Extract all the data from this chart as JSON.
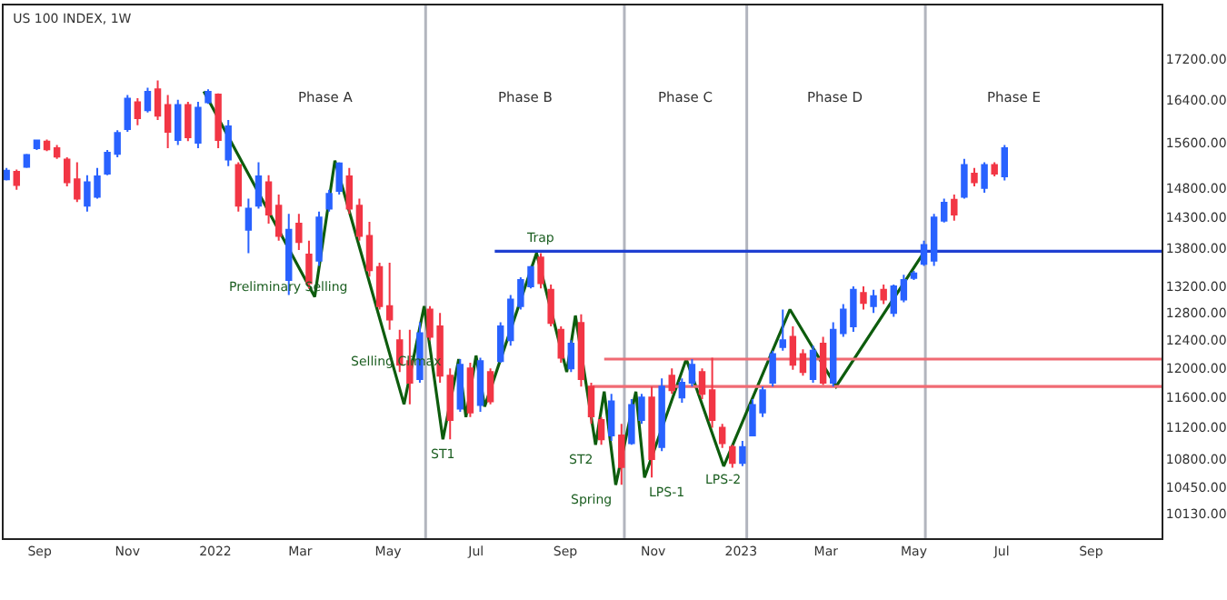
{
  "chart_data": {
    "type": "candlestick",
    "title": "US 100 INDEX, 1W",
    "x": [
      "2021-08-09",
      "2021-08-16",
      "2021-08-23",
      "2021-08-30",
      "2021-09-06",
      "2021-09-13",
      "2021-09-20",
      "2021-09-27",
      "2021-10-04",
      "2021-10-11",
      "2021-10-18",
      "2021-10-25",
      "2021-11-01",
      "2021-11-08",
      "2021-11-15",
      "2021-11-22",
      "2021-11-29",
      "2021-12-06",
      "2021-12-13",
      "2021-12-20",
      "2021-12-27",
      "2022-01-03",
      "2022-01-10",
      "2022-01-17",
      "2022-01-24",
      "2022-01-31",
      "2022-02-07",
      "2022-02-14",
      "2022-02-21",
      "2022-02-28",
      "2022-03-07",
      "2022-03-14",
      "2022-03-21",
      "2022-03-28",
      "2022-04-04",
      "2022-04-11",
      "2022-04-18",
      "2022-04-25",
      "2022-05-02",
      "2022-05-09",
      "2022-05-16",
      "2022-05-23",
      "2022-05-30",
      "2022-06-06",
      "2022-06-13",
      "2022-06-20",
      "2022-06-27",
      "2022-07-04",
      "2022-07-11",
      "2022-07-18",
      "2022-07-25",
      "2022-08-01",
      "2022-08-08",
      "2022-08-15",
      "2022-08-22",
      "2022-08-29",
      "2022-09-05",
      "2022-09-12",
      "2022-09-19",
      "2022-09-26",
      "2022-10-03",
      "2022-10-10",
      "2022-10-17",
      "2022-10-24",
      "2022-10-31",
      "2022-11-07",
      "2022-11-14",
      "2022-11-21",
      "2022-11-28",
      "2022-12-05",
      "2022-12-12",
      "2022-12-19",
      "2022-12-26",
      "2023-01-02",
      "2023-01-09",
      "2023-01-16",
      "2023-01-23",
      "2023-01-30",
      "2023-02-06",
      "2023-02-13",
      "2023-02-20",
      "2023-02-27",
      "2023-03-06",
      "2023-03-13",
      "2023-03-20",
      "2023-03-27",
      "2023-04-03",
      "2023-04-10",
      "2023-04-17",
      "2023-04-24",
      "2023-05-01",
      "2023-05-08",
      "2023-05-15",
      "2023-05-22",
      "2023-05-29",
      "2023-06-05",
      "2023-06-12",
      "2023-06-19",
      "2023-06-26",
      "2023-07-03"
    ],
    "ohlc": [
      [
        14950,
        15150,
        14930,
        15100
      ],
      [
        15080,
        15120,
        14770,
        14850
      ],
      [
        15170,
        15400,
        15150,
        15380
      ],
      [
        15500,
        15660,
        15470,
        15640
      ],
      [
        15620,
        15660,
        15450,
        15480
      ],
      [
        15500,
        15560,
        15310,
        15350
      ],
      [
        15300,
        15340,
        14830,
        14900
      ],
      [
        14950,
        15250,
        14560,
        14620
      ],
      [
        14500,
        15020,
        14400,
        14900
      ],
      [
        14650,
        15150,
        14620,
        15000
      ],
      [
        15050,
        15470,
        15020,
        15420
      ],
      [
        15400,
        15830,
        15340,
        15780
      ],
      [
        15850,
        16490,
        15800,
        16420
      ],
      [
        16350,
        16430,
        15920,
        16050
      ],
      [
        16200,
        16630,
        16160,
        16550
      ],
      [
        16600,
        16770,
        16020,
        16100
      ],
      [
        16300,
        16490,
        15500,
        15800
      ],
      [
        15650,
        16400,
        15560,
        16300
      ],
      [
        16300,
        16360,
        15630,
        15700
      ],
      [
        15600,
        16360,
        15500,
        16250
      ],
      [
        16350,
        16600,
        16320,
        16550
      ],
      [
        16500,
        16520,
        15500,
        15650
      ],
      [
        15300,
        16020,
        15180,
        15900
      ],
      [
        15200,
        15250,
        14400,
        14500
      ],
      [
        14100,
        14620,
        13720,
        14450
      ],
      [
        14500,
        15250,
        14450,
        15000
      ],
      [
        14900,
        15020,
        14200,
        14350
      ],
      [
        14500,
        14690,
        13920,
        14000
      ],
      [
        13300,
        14360,
        13070,
        14100
      ],
      [
        14200,
        14360,
        13770,
        13900
      ],
      [
        13700,
        13920,
        13170,
        13250
      ],
      [
        13600,
        14400,
        13520,
        14300
      ],
      [
        14450,
        14770,
        14400,
        14700
      ],
      [
        14750,
        15250,
        14690,
        15230
      ],
      [
        15000,
        15150,
        14360,
        14450
      ],
      [
        14500,
        14620,
        13920,
        14000
      ],
      [
        14000,
        14230,
        13350,
        13450
      ],
      [
        13500,
        13570,
        12850,
        12900
      ],
      [
        12900,
        13570,
        12550,
        12700
      ],
      [
        12400,
        12550,
        11950,
        12050
      ],
      [
        12100,
        12550,
        11510,
        11800
      ],
      [
        11850,
        12660,
        11800,
        12500
      ],
      [
        12850,
        12900,
        12400,
        12450
      ],
      [
        12600,
        12800,
        11800,
        11900
      ],
      [
        11900,
        12000,
        11050,
        11300
      ],
      [
        11450,
        12130,
        11410,
        12050
      ],
      [
        12000,
        12080,
        11340,
        11400
      ],
      [
        11500,
        12150,
        11410,
        12100
      ],
      [
        11950,
        12000,
        11510,
        11550
      ],
      [
        12100,
        12660,
        12080,
        12600
      ],
      [
        12400,
        13070,
        12320,
        13000
      ],
      [
        12900,
        13340,
        12850,
        13300
      ],
      [
        13200,
        13520,
        13170,
        13500
      ],
      [
        13650,
        13720,
        13170,
        13250
      ],
      [
        13150,
        13230,
        12600,
        12650
      ],
      [
        12550,
        12600,
        12080,
        12150
      ],
      [
        12000,
        12400,
        11950,
        12350
      ],
      [
        12650,
        12780,
        11750,
        11850
      ],
      [
        11750,
        11800,
        11250,
        11350
      ],
      [
        11300,
        11340,
        10980,
        11050
      ],
      [
        11100,
        11650,
        11030,
        11550
      ],
      [
        11100,
        11250,
        10480,
        10700
      ],
      [
        11000,
        11580,
        10980,
        11500
      ],
      [
        11300,
        11650,
        11250,
        11600
      ],
      [
        11600,
        11750,
        10570,
        10800
      ],
      [
        10950,
        11860,
        10900,
        11750
      ],
      [
        11900,
        12000,
        11650,
        11700
      ],
      [
        11600,
        11860,
        11530,
        11800
      ],
      [
        11800,
        12130,
        11750,
        12050
      ],
      [
        11950,
        12000,
        11580,
        11650
      ],
      [
        11700,
        12150,
        11200,
        11300
      ],
      [
        11200,
        11250,
        10940,
        11000
      ],
      [
        10950,
        10980,
        10690,
        10750
      ],
      [
        10750,
        11030,
        10710,
        10950
      ],
      [
        11100,
        11580,
        11090,
        11500
      ],
      [
        11400,
        11750,
        11340,
        11700
      ],
      [
        11800,
        12250,
        11750,
        12200
      ],
      [
        12300,
        12850,
        12250,
        12400
      ],
      [
        12450,
        12600,
        11980,
        12050
      ],
      [
        12200,
        12270,
        11900,
        11950
      ],
      [
        11850,
        12320,
        11800,
        12250
      ],
      [
        12350,
        12450,
        11770,
        11800
      ],
      [
        11800,
        12660,
        11750,
        12550
      ],
      [
        12500,
        12930,
        12450,
        12850
      ],
      [
        12600,
        13200,
        12520,
        13150
      ],
      [
        13100,
        13200,
        12850,
        12950
      ],
      [
        12900,
        13150,
        12800,
        13050
      ],
      [
        13150,
        13230,
        12930,
        13000
      ],
      [
        12800,
        13230,
        12740,
        13200
      ],
      [
        13000,
        13380,
        12960,
        13300
      ],
      [
        13330,
        13440,
        13300,
        13400
      ],
      [
        13550,
        13920,
        13520,
        13850
      ],
      [
        13600,
        14360,
        13520,
        14300
      ],
      [
        14250,
        14620,
        14220,
        14550
      ],
      [
        14600,
        14690,
        14250,
        14350
      ],
      [
        14650,
        15310,
        14620,
        15200
      ],
      [
        15050,
        15150,
        14830,
        14900
      ],
      [
        14800,
        15250,
        14720,
        15200
      ],
      [
        15200,
        15250,
        15000,
        15050
      ],
      [
        15000,
        15560,
        14930,
        15500
      ]
    ],
    "colors": [
      "#2962ff",
      "#f23645",
      "#2962ff",
      "#2962ff",
      "#f23645",
      "#f23645",
      "#f23645",
      "#f23645",
      "#2962ff",
      "#2962ff",
      "#2962ff",
      "#2962ff",
      "#2962ff",
      "#f23645",
      "#2962ff",
      "#f23645",
      "#f23645",
      "#2962ff",
      "#f23645",
      "#2962ff",
      "#2962ff",
      "#f23645",
      "#2962ff",
      "#f23645",
      "#2962ff",
      "#2962ff",
      "#f23645",
      "#f23645",
      "#2962ff",
      "#f23645",
      "#f23645",
      "#2962ff",
      "#2962ff",
      "#2962ff",
      "#f23645",
      "#f23645",
      "#f23645",
      "#f23645",
      "#f23645",
      "#f23645",
      "#f23645",
      "#2962ff",
      "#f23645",
      "#f23645",
      "#f23645",
      "#2962ff",
      "#f23645",
      "#2962ff",
      "#f23645",
      "#2962ff",
      "#2962ff",
      "#2962ff",
      "#2962ff",
      "#f23645",
      "#f23645",
      "#f23645",
      "#2962ff",
      "#f23645",
      "#f23645",
      "#f23645",
      "#2962ff",
      "#f23645",
      "#2962ff",
      "#2962ff",
      "#f23645",
      "#2962ff",
      "#f23645",
      "#2962ff",
      "#2962ff",
      "#f23645",
      "#f23645",
      "#f23645",
      "#f23645",
      "#2962ff",
      "#2962ff",
      "#2962ff",
      "#2962ff",
      "#2962ff",
      "#f23645",
      "#f23645",
      "#2962ff",
      "#f23645",
      "#2962ff",
      "#2962ff",
      "#2962ff",
      "#f23645",
      "#2962ff",
      "#f23645",
      "#2962ff",
      "#2962ff",
      "#2962ff",
      "#2962ff",
      "#2962ff",
      "#2962ff",
      "#f23645",
      "#2962ff",
      "#f23645",
      "#2962ff",
      "#f23645",
      "#2962ff"
    ],
    "series": [
      {
        "type": "line",
        "color": "#0d5c0d",
        "x": [
          "2021-12-24",
          "2022-03-11",
          "2022-03-25",
          "2022-05-12",
          "2022-05-26",
          "2022-06-08",
          "2022-06-19",
          "2022-06-24",
          "2022-07-01",
          "2022-07-07",
          "2022-08-12",
          "2022-09-02",
          "2022-09-08",
          "2022-09-22",
          "2022-09-28",
          "2022-10-06",
          "2022-10-20",
          "2022-10-26",
          "2022-11-24",
          "2022-12-20",
          "2023-02-04",
          "2023-03-08",
          "2023-05-09"
        ],
        "values": [
          16560,
          13040,
          15280,
          11510,
          12900,
          11050,
          12130,
          11340,
          12180,
          11480,
          13720,
          11950,
          12760,
          10980,
          11680,
          10480,
          11680,
          10570,
          12130,
          10710,
          12850,
          11750,
          13770
        ]
      },
      {
        "type": "line",
        "color": "#1f3fd1",
        "x": [
          "2022-07-14",
          "2023-10-20"
        ],
        "values": [
          13750,
          13750
        ]
      },
      {
        "type": "line",
        "color": "#f06a73",
        "x": [
          "2022-09-28",
          "2023-10-20"
        ],
        "values": [
          12130,
          12130
        ]
      },
      {
        "type": "line",
        "color": "#f06a73",
        "x": [
          "2022-09-20",
          "2023-10-20"
        ],
        "values": [
          11750,
          11750
        ]
      }
    ],
    "ref_lines": [
      {
        "axis": "x",
        "value": "2022-05-27",
        "color": "#b2b5be"
      },
      {
        "axis": "x",
        "value": "2022-10-12",
        "color": "#b2b5be"
      },
      {
        "axis": "x",
        "value": "2023-01-05",
        "color": "#b2b5be"
      },
      {
        "axis": "x",
        "value": "2023-05-09",
        "color": "#b2b5be"
      }
    ],
    "annotations": [
      "Phase A",
      "Phase B",
      "Phase C",
      "Phase D",
      "Phase E",
      {
        "text": "Preliminary Selling",
        "x": "2022-02-20",
        "y": 13400
      },
      {
        "text": "Selling Climax",
        "x": "2022-05-07",
        "y": 12310
      },
      {
        "text": "Trap",
        "x": "2022-08-14",
        "y": 13750
      },
      {
        "text": "ST1",
        "x": "2022-06-08",
        "y": 11050
      },
      {
        "text": "ST2",
        "x": "2022-09-22",
        "y": 10980
      },
      {
        "text": "Spring",
        "x": "2022-10-06",
        "y": 10480
      },
      {
        "text": "LPS-1",
        "x": "2022-10-26",
        "y": 10570
      },
      {
        "text": "LPS-2",
        "x": "2022-12-20",
        "y": 10710
      }
    ],
    "xlim": [
      "2021-08-07",
      "2023-10-20"
    ],
    "xticks": [
      {
        "value": "2021-09-01",
        "label": "Sep"
      },
      {
        "value": "2021-11-01",
        "label": "Nov"
      },
      {
        "value": "2022-01-01",
        "label": "2022"
      },
      {
        "value": "2022-03-01",
        "label": "Mar"
      },
      {
        "value": "2022-05-01",
        "label": "May"
      },
      {
        "value": "2022-07-01",
        "label": "Jul"
      },
      {
        "value": "2022-09-01",
        "label": "Sep"
      },
      {
        "value": "2022-11-01",
        "label": "Nov"
      },
      {
        "value": "2023-01-01",
        "label": "2023"
      },
      {
        "value": "2023-03-01",
        "label": "Mar"
      },
      {
        "value": "2023-05-01",
        "label": "May"
      },
      {
        "value": "2023-07-01",
        "label": "Jul"
      },
      {
        "value": "2023-09-01",
        "label": "Sep"
      }
    ],
    "ylim": [
      9850,
      18300
    ],
    "yticks": [
      {
        "value": 17200,
        "label": "17200.00"
      },
      {
        "value": 16400,
        "label": "16400.00"
      },
      {
        "value": 15600,
        "label": "15600.00"
      },
      {
        "value": 14800,
        "label": "14800.00"
      },
      {
        "value": 14300,
        "label": "14300.00"
      },
      {
        "value": 13800,
        "label": "13800.00"
      },
      {
        "value": 13200,
        "label": "13200.00"
      },
      {
        "value": 12800,
        "label": "12800.00"
      },
      {
        "value": 12400,
        "label": "12400.00"
      },
      {
        "value": 12000,
        "label": "12000.00"
      },
      {
        "value": 11600,
        "label": "11600.00"
      },
      {
        "value": 11200,
        "label": "11200.00"
      },
      {
        "value": 10800,
        "label": "10800.00"
      },
      {
        "value": 10450,
        "label": "10450.00"
      },
      {
        "value": 10130,
        "label": "10130.00"
      }
    ],
    "log": true
  }
}
